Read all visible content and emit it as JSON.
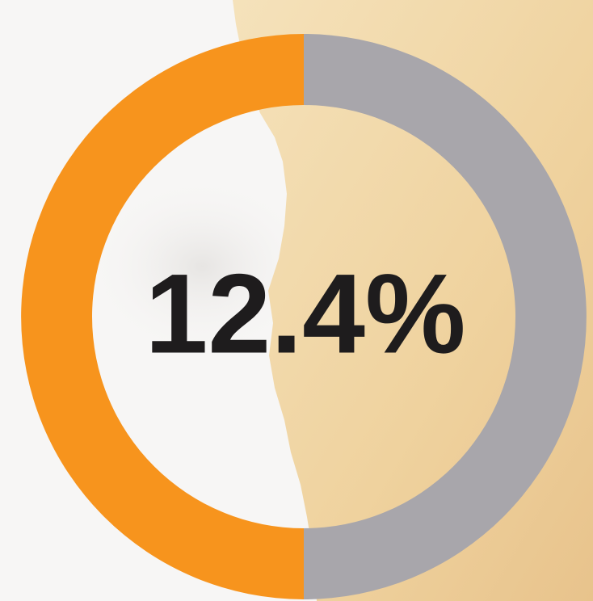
{
  "chart_data": {
    "type": "donut",
    "values": [
      50,
      50
    ],
    "colors": [
      "#f7941d",
      "#a8a6ab"
    ],
    "center_label": "12.4%"
  }
}
